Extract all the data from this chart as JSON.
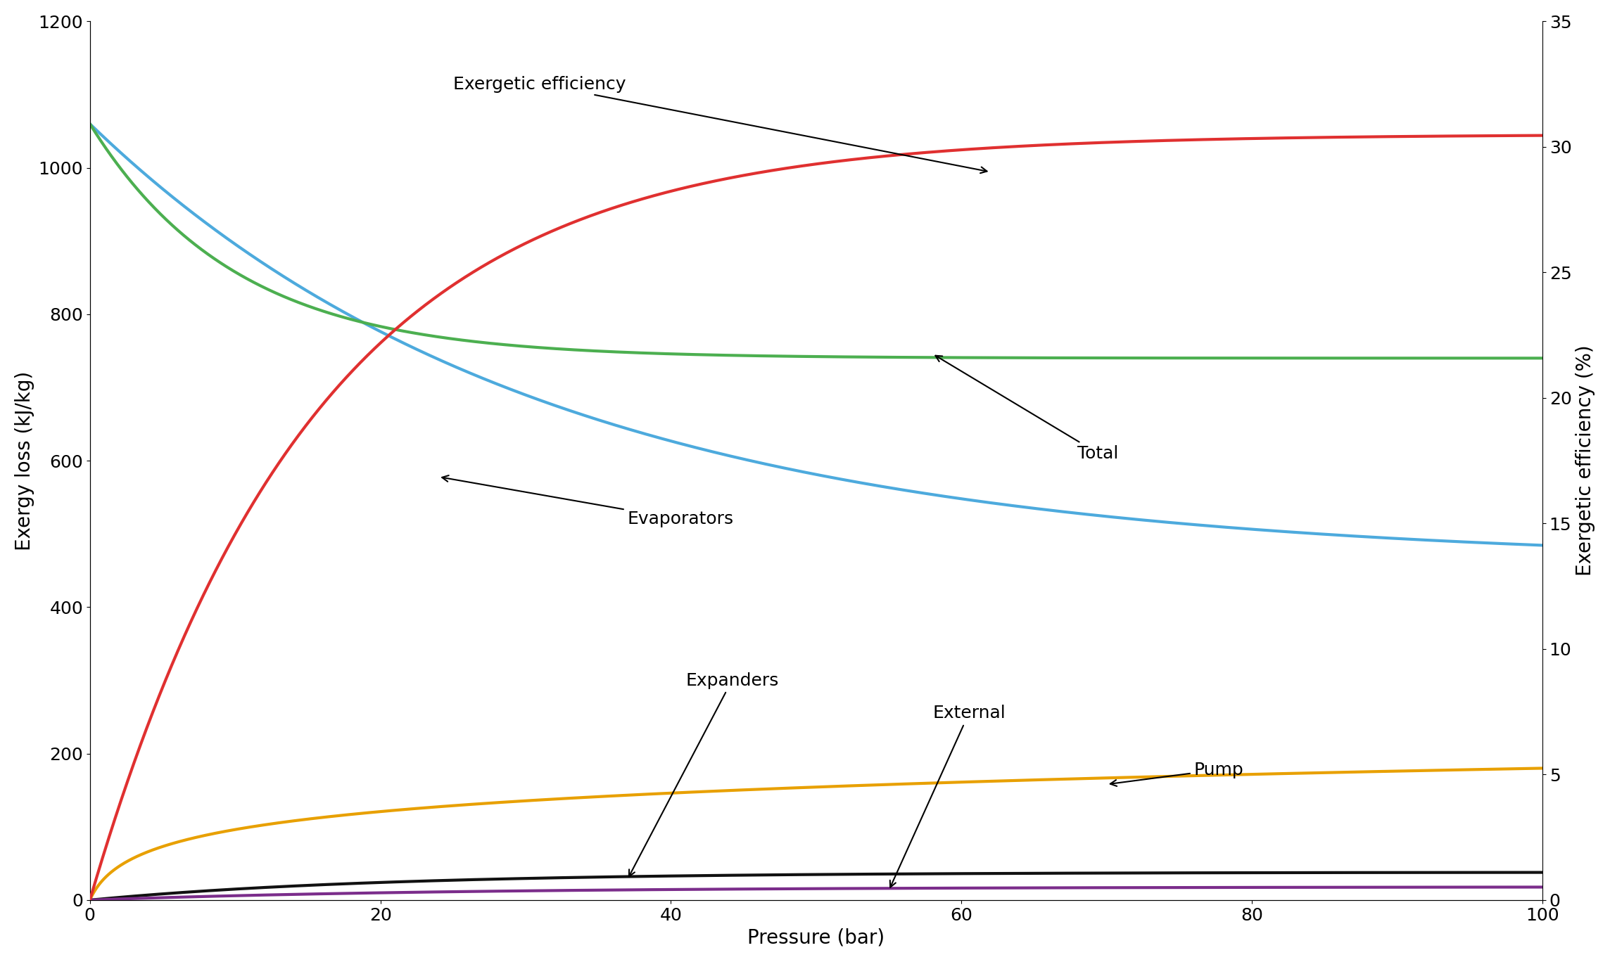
{
  "xlabel": "Pressure (bar)",
  "ylabel_left": "Exergy loss (kJ/kg)",
  "ylabel_right": "Exergetic efficiency (%)",
  "xlim": [
    0,
    100
  ],
  "ylim_left": [
    0,
    1200
  ],
  "ylim_right": [
    0,
    35
  ],
  "xticks": [
    0,
    20,
    40,
    60,
    80,
    100
  ],
  "yticks_left": [
    0,
    200,
    400,
    600,
    800,
    1000,
    1200
  ],
  "yticks_right": [
    0,
    5,
    10,
    15,
    20,
    25,
    30,
    35
  ],
  "colors": {
    "evaporators": "#4DAADD",
    "total": "#4CAF50",
    "efficiency": "#E03030",
    "expanders": "#111111",
    "external": "#7B2D8B",
    "pump": "#E8A000"
  },
  "background_color": "#ffffff",
  "font_size": 20,
  "line_width": 3.0,
  "figsize": [
    22.88,
    13.68
  ],
  "dpi": 100
}
